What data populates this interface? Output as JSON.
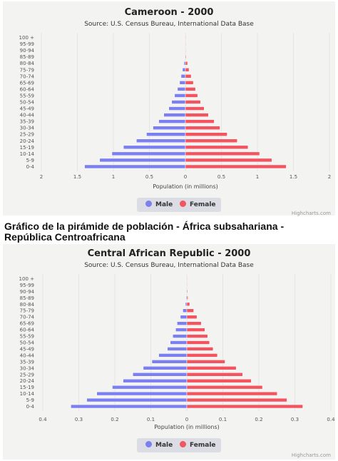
{
  "heading": "Gráfico de la pirámide de población - África subsahariana - República Centroafricana",
  "colors": {
    "male": "#7b7ff0",
    "female": "#f2555f",
    "background": "#f3f3f1"
  },
  "chart_data": [
    {
      "type": "bar",
      "orientation": "horizontal-pyramid",
      "title": "Cameroon - 2000",
      "subtitle": "Source: U.S. Census Bureau, International Data Base",
      "xlabel": "Population (in millions)",
      "xlim": [
        -2,
        2
      ],
      "x_ticks": [
        "2",
        "1.5",
        "1",
        "0.5",
        "0",
        "0.5",
        "1",
        "1.5",
        "2"
      ],
      "categories": [
        "100 +",
        "95-99",
        "90-94",
        "85-89",
        "80-84",
        "75-79",
        "70-74",
        "65-69",
        "60-64",
        "55-59",
        "50-54",
        "45-49",
        "40-44",
        "35-39",
        "30-34",
        "25-29",
        "20-24",
        "15-19",
        "10-14",
        "5-9",
        "0-4"
      ],
      "series": [
        {
          "name": "Male",
          "values": [
            0.001,
            0.002,
            0.004,
            0.008,
            0.02,
            0.04,
            0.06,
            0.08,
            0.11,
            0.15,
            0.19,
            0.23,
            0.3,
            0.37,
            0.45,
            0.54,
            0.68,
            0.86,
            1.02,
            1.19,
            1.4
          ]
        },
        {
          "name": "Female",
          "values": [
            0.001,
            0.003,
            0.006,
            0.01,
            0.03,
            0.05,
            0.08,
            0.11,
            0.14,
            0.17,
            0.21,
            0.26,
            0.32,
            0.4,
            0.48,
            0.58,
            0.72,
            0.87,
            1.03,
            1.2,
            1.4
          ]
        }
      ],
      "legend": "bottom-center",
      "grid": true
    },
    {
      "type": "bar",
      "orientation": "horizontal-pyramid",
      "title": "Central African Republic - 2000",
      "subtitle": "Source: U.S. Census Bureau, International Data Base",
      "xlabel": "Population (in millions)",
      "xlim": [
        -0.4,
        0.4
      ],
      "x_ticks": [
        "0.4",
        "0.3",
        "0.2",
        "0.1",
        "0",
        "0.1",
        "0.2",
        "0.3",
        "0.4"
      ],
      "categories": [
        "100 +",
        "95-99",
        "90-94",
        "85-89",
        "80-84",
        "75-79",
        "70-74",
        "65-69",
        "60-64",
        "55-59",
        "50-54",
        "45-49",
        "40-44",
        "35-39",
        "30-34",
        "25-29",
        "20-24",
        "15-19",
        "10-14",
        "5-9",
        "0-4"
      ],
      "series": [
        {
          "name": "Male",
          "values": [
            0.0002,
            0.0005,
            0.001,
            0.002,
            0.004,
            0.011,
            0.018,
            0.027,
            0.031,
            0.039,
            0.046,
            0.054,
            0.078,
            0.097,
            0.121,
            0.15,
            0.177,
            0.207,
            0.25,
            0.278,
            0.322
          ]
        },
        {
          "name": "Female",
          "values": [
            0.0003,
            0.0008,
            0.002,
            0.003,
            0.008,
            0.019,
            0.028,
            0.04,
            0.05,
            0.058,
            0.063,
            0.073,
            0.085,
            0.106,
            0.137,
            0.155,
            0.179,
            0.21,
            0.251,
            0.278,
            0.322
          ]
        }
      ],
      "legend": "bottom-center",
      "grid": true
    }
  ],
  "credits": [
    "Highcharts.com",
    "Highcharts.com"
  ]
}
